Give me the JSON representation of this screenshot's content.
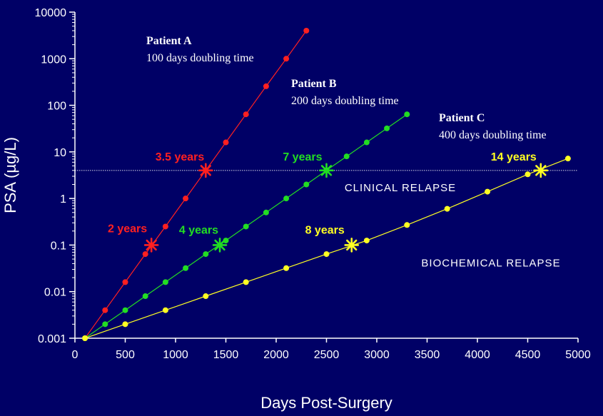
{
  "chart_data": {
    "type": "line",
    "title": "",
    "xlabel": "Days Post-Surgery",
    "ylabel": "PSA (µg/L)",
    "xlim": [
      0,
      5000
    ],
    "ylim": [
      0.001,
      10000
    ],
    "yscale": "log",
    "x_ticks": [
      "0",
      "500",
      "1000",
      "1500",
      "2000",
      "2500",
      "3000",
      "3500",
      "4000",
      "4500",
      "5000"
    ],
    "y_ticks": [
      "10000",
      "1000",
      "100",
      "10",
      "1",
      "0.1",
      "0.01",
      "0.001"
    ],
    "threshold": {
      "value": 4,
      "label_above": "CLINICAL RELAPSE",
      "label_below": "BIOCHEMICAL RELAPSE"
    },
    "series": [
      {
        "name": "Patient A",
        "description": "100 days doubling time",
        "color": "#ff2020",
        "x": [
          100,
          300,
          500,
          700,
          900,
          1100,
          1300,
          1500,
          1700,
          1900,
          2100,
          2300
        ],
        "y": [
          0.001,
          0.004,
          0.016,
          0.064,
          0.25,
          1,
          4,
          16,
          64,
          256,
          1000,
          4000
        ],
        "markers": [
          {
            "label": "2 years",
            "x": 760,
            "y": 0.1
          },
          {
            "label": "3.5 years",
            "x": 1300,
            "y": 4
          }
        ]
      },
      {
        "name": "Patient B",
        "description": "200 days doubling time",
        "color": "#22dd22",
        "x": [
          100,
          300,
          500,
          700,
          900,
          1100,
          1300,
          1500,
          1700,
          1900,
          2100,
          2300,
          2500,
          2700,
          2900,
          3100,
          3300
        ],
        "y": [
          0.001,
          0.002,
          0.004,
          0.008,
          0.016,
          0.032,
          0.064,
          0.125,
          0.25,
          0.5,
          1,
          2,
          4,
          8,
          16,
          32,
          64
        ],
        "markers": [
          {
            "label": "4 years",
            "x": 1440,
            "y": 0.1
          },
          {
            "label": "7 years",
            "x": 2500,
            "y": 4
          }
        ]
      },
      {
        "name": "Patient C",
        "description": "400 days doubling time",
        "color": "#ffff22",
        "x": [
          100,
          500,
          900,
          1300,
          1700,
          2100,
          2500,
          2900,
          3300,
          3700,
          4100,
          4500,
          4900
        ],
        "y": [
          0.001,
          0.002,
          0.004,
          0.008,
          0.016,
          0.032,
          0.064,
          0.125,
          0.27,
          0.6,
          1.4,
          3.3,
          7.2
        ],
        "markers": [
          {
            "label": "8 years",
            "x": 2750,
            "y": 0.1
          },
          {
            "label": "14 years",
            "x": 4630,
            "y": 4
          }
        ]
      }
    ]
  }
}
